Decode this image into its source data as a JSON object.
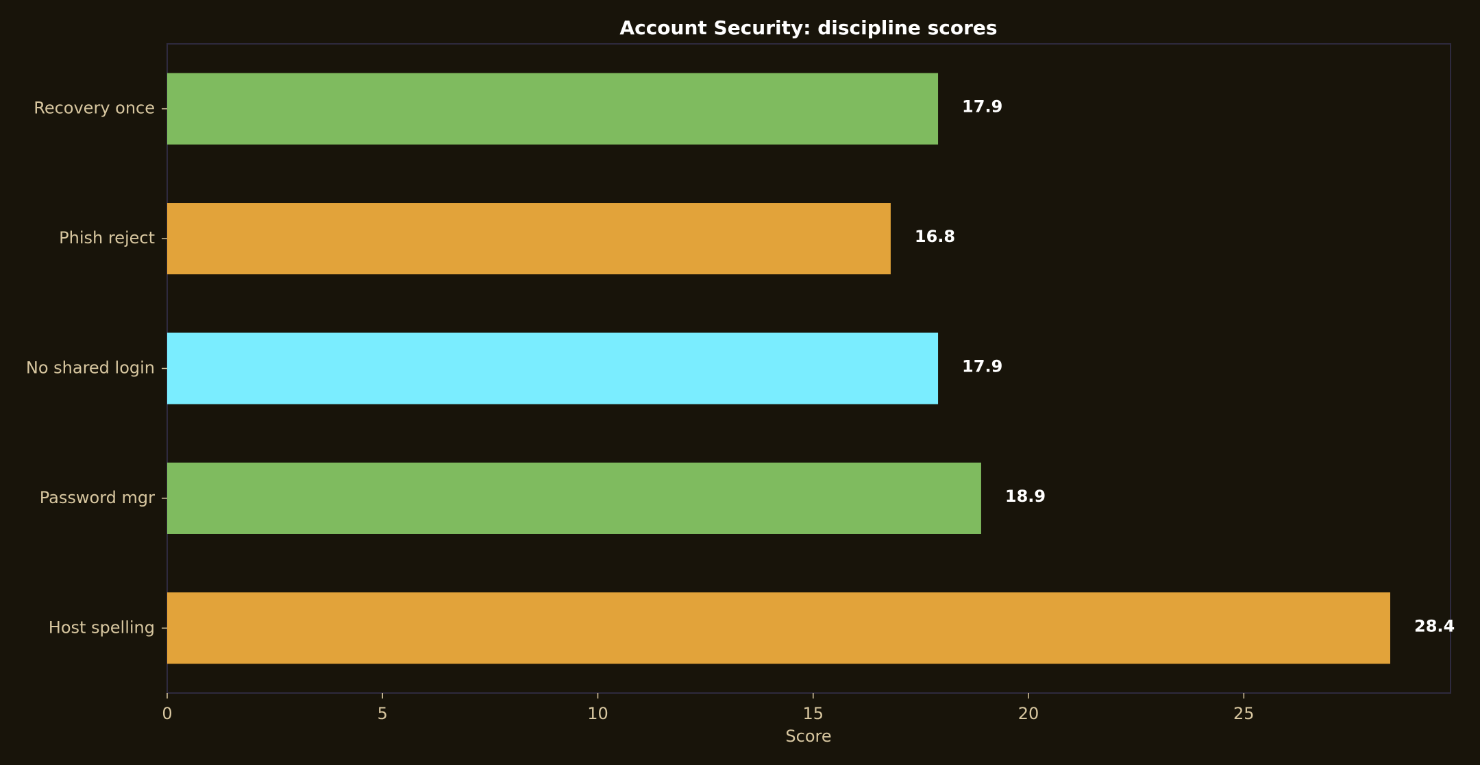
{
  "chart_data": {
    "type": "bar",
    "orientation": "horizontal",
    "title": "Account Security: discipline scores",
    "xlabel": "Score",
    "ylabel": "",
    "categories": [
      "Recovery once",
      "Phish reject",
      "No shared login",
      "Password mgr",
      "Host spelling"
    ],
    "values": [
      17.9,
      16.8,
      17.9,
      18.9,
      28.4
    ],
    "value_labels": [
      "17.9",
      "16.8",
      "17.9",
      "18.9",
      "28.4"
    ],
    "colors": [
      "#7fbb5f",
      "#e2a33a",
      "#7aedff",
      "#7fbb5f",
      "#e2a33a"
    ],
    "xlim": [
      0,
      29.8
    ],
    "xticks": [
      0,
      5,
      10,
      15,
      20,
      25
    ],
    "grid": false,
    "legend": "none",
    "background": "#18140a",
    "text_color": "#d8c7a0"
  }
}
